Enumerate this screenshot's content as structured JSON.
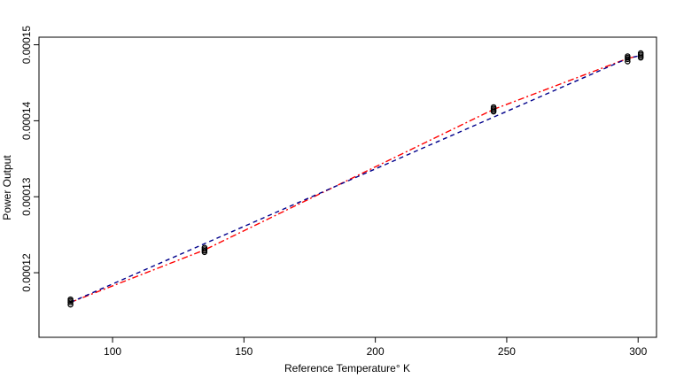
{
  "chart_data": {
    "type": "scatter",
    "title": "",
    "xlabel": "Reference Temperature° K",
    "ylabel": "Power Output",
    "xlim": [
      72,
      307
    ],
    "ylim": [
      0.0001115,
      0.000151
    ],
    "x_ticks": [
      100,
      150,
      200,
      250,
      300
    ],
    "x_tick_labels": [
      "100",
      "150",
      "200",
      "250",
      "300"
    ],
    "y_ticks": [
      0.00012,
      0.00013,
      0.00014,
      0.00015
    ],
    "y_tick_labels": [
      "0.00012",
      "0.00013",
      "0.00014",
      "0.00015"
    ],
    "grid": false,
    "legend": "none",
    "points": {
      "color": "#000000",
      "x": [
        84,
        84,
        84,
        84,
        135,
        135,
        135,
        135,
        245,
        245,
        245,
        245,
        296,
        296,
        296,
        296,
        301,
        301,
        301,
        301
      ],
      "y": [
        0.0001158,
        0.0001161,
        0.0001163,
        0.0001165,
        0.0001227,
        0.0001229,
        0.0001231,
        0.0001233,
        0.0001412,
        0.0001414,
        0.0001416,
        0.0001418,
        0.0001478,
        0.0001481,
        0.0001483,
        0.0001485,
        0.0001483,
        0.0001485,
        0.0001487,
        0.0001489
      ]
    },
    "lines": [
      {
        "style": "dash-dot",
        "color": "#ff0000",
        "x": [
          84,
          135,
          245,
          296,
          301
        ],
        "y": [
          0.0001161,
          0.000123,
          0.0001415,
          0.0001482,
          0.0001486
        ]
      },
      {
        "style": "dashed",
        "color": "#00008b",
        "x": [
          84,
          296,
          301
        ],
        "y": [
          0.0001161,
          0.0001482,
          0.0001486
        ]
      }
    ]
  }
}
